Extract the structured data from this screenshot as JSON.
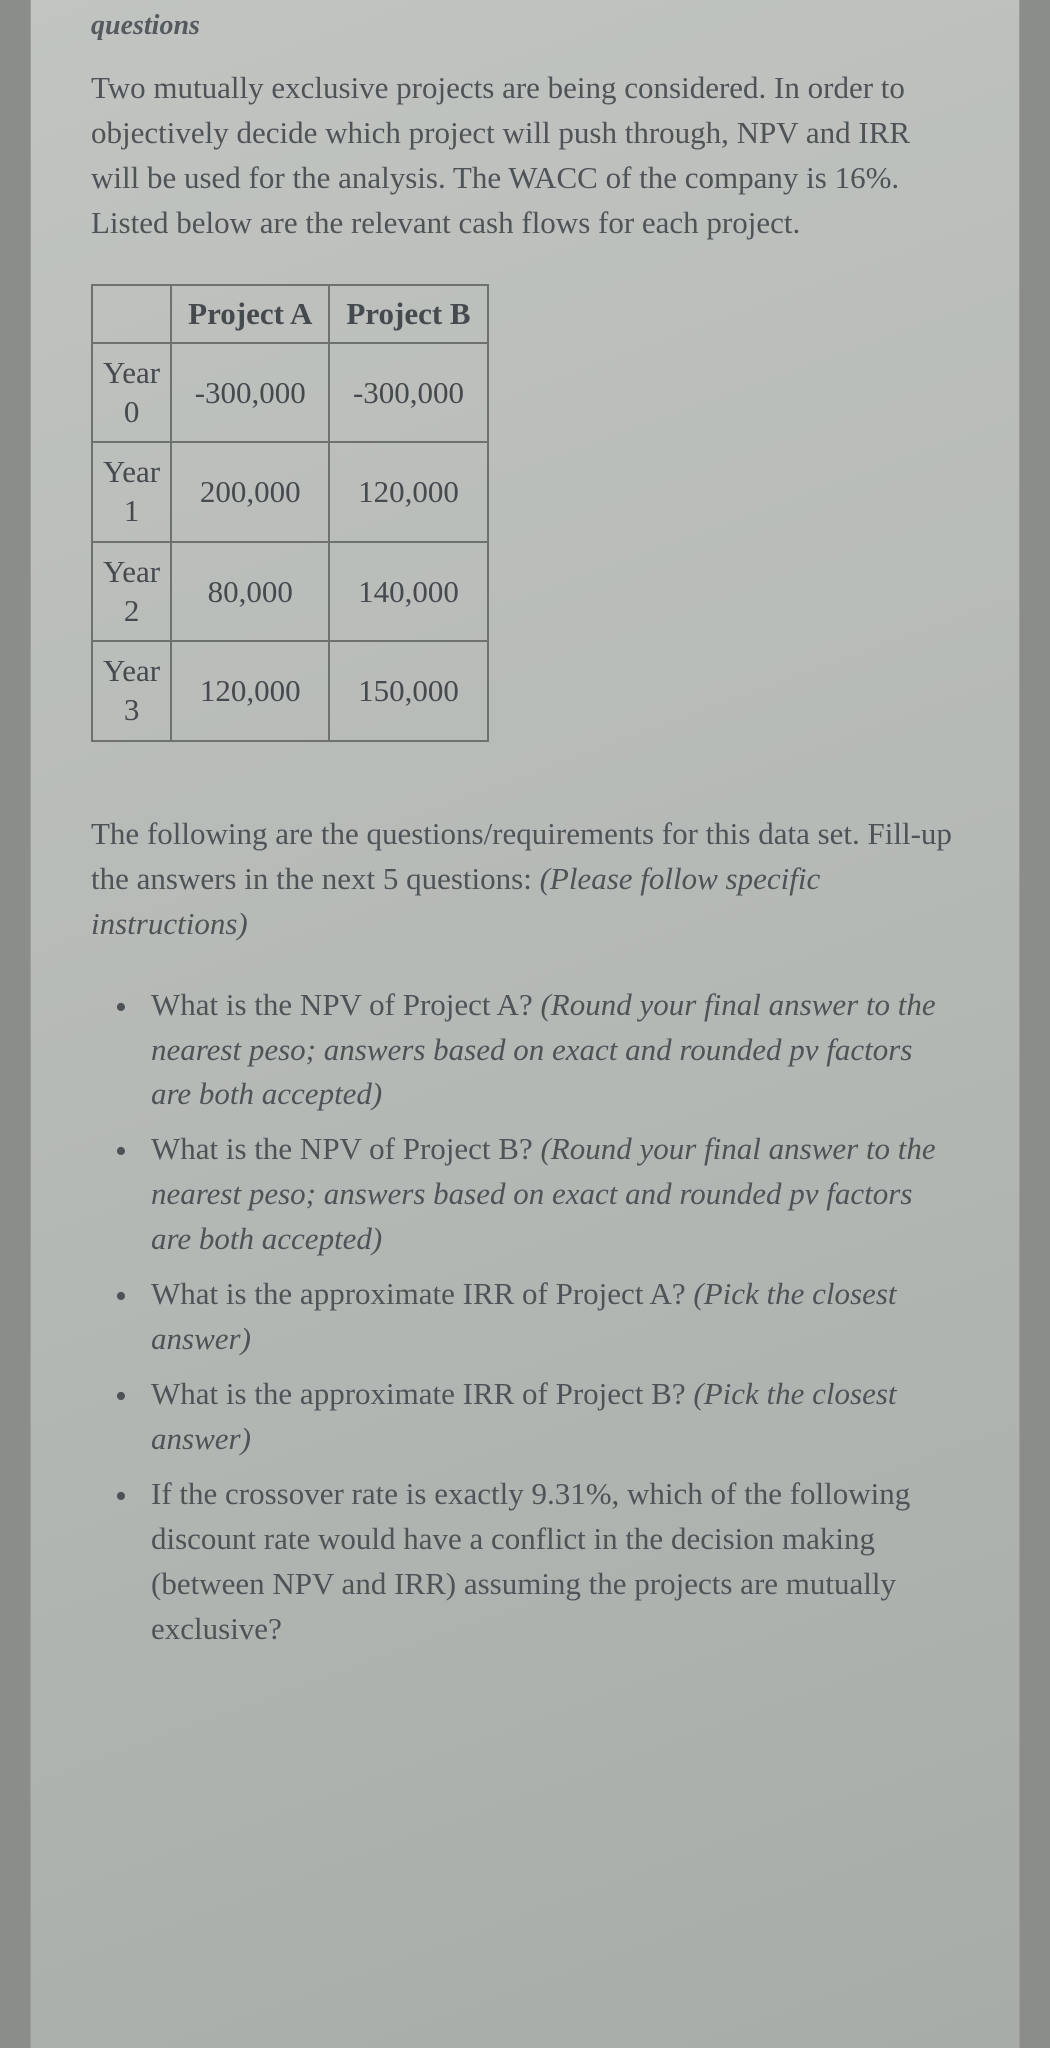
{
  "header": "questions",
  "intro": "Two mutually exclusive projects are being considered. In order to objectively decide which project will push through, NPV and IRR will be used for the analysis. The WACC of the company is 16%. Listed below are the relevant cash flows for each project.",
  "table": {
    "columns": [
      "Project A",
      "Project B"
    ],
    "rows": [
      {
        "year_label_1": "Year",
        "year_label_2": "0",
        "a": "-300,000",
        "b": "-300,000"
      },
      {
        "year_label_1": "Year",
        "year_label_2": "1",
        "a": "200,000",
        "b": "120,000"
      },
      {
        "year_label_1": "Year",
        "year_label_2": "2",
        "a": "80,000",
        "b": "140,000"
      },
      {
        "year_label_1": "Year",
        "year_label_2": "3",
        "a": "120,000",
        "b": "150,000"
      }
    ],
    "border_color": "#6e726f",
    "font_size": 31
  },
  "subintro_1": "The following are the questions/requirements for this data set. Fill-up the answers in the next 5 questions: ",
  "subintro_2_italic": "(Please follow specific instructions)",
  "questions": [
    {
      "q": "What is the NPV of Project A? ",
      "hint": "(Round your final answer to the nearest peso; answers based on exact and rounded pv factors are both accepted)"
    },
    {
      "q": "What is the NPV of Project B? ",
      "hint": "(Round your final answer to the nearest peso; answers based on exact and rounded pv factors are both accepted)"
    },
    {
      "q": "What is the approximate IRR of Project A?  ",
      "hint": "(Pick the closest answer)"
    },
    {
      "q": "What is the approximate IRR of Project B?  ",
      "hint": "(Pick the closest answer)"
    },
    {
      "q": "If the crossover rate is exactly 9.31%, which of the following discount rate would have a conflict in the decision making (between NPV and IRR) assuming the projects are mutually exclusive?",
      "hint": ""
    }
  ],
  "colors": {
    "page_bg": "#b9bdb9",
    "text": "#4e5357"
  }
}
